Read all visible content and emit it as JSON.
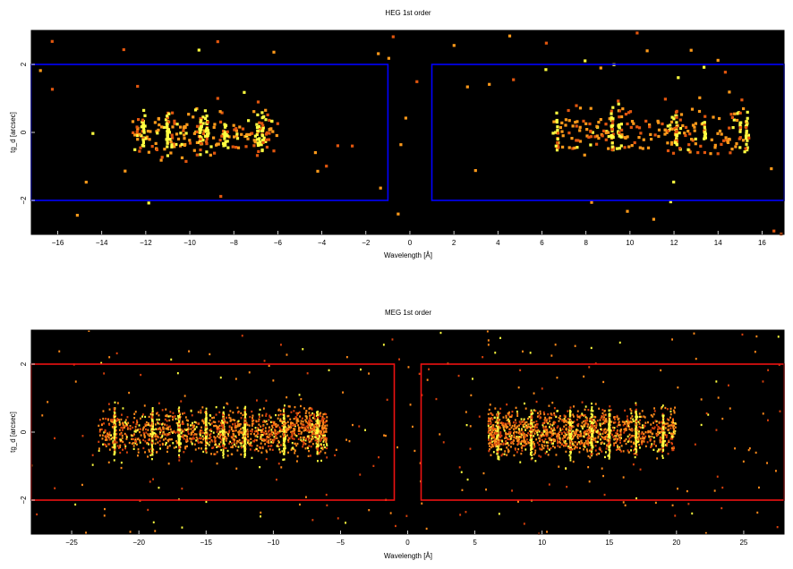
{
  "chart_data": [
    {
      "type": "heatmap",
      "title": "HEG 1st order",
      "xlabel": "Wavelength [Å]",
      "ylabel": "tg_d [arcsec]",
      "xlim": [
        -17.2,
        17.0
      ],
      "ylim": [
        -3.0,
        3.0
      ],
      "xticks": [
        -16,
        -14,
        -12,
        -10,
        -8,
        -6,
        -4,
        -2,
        0,
        2,
        4,
        6,
        8,
        10,
        12,
        14,
        16
      ],
      "xtick_labels": [
        "−16",
        "−14",
        "−12",
        "−10",
        "−8",
        "−6",
        "−4",
        "−2",
        "0",
        "2",
        "4",
        "6",
        "8",
        "10",
        "12",
        "14",
        "16"
      ],
      "yticks": [
        -2,
        0,
        2
      ],
      "ytick_labels": [
        "−2",
        "0",
        "2"
      ],
      "colors": {
        "background": "#000000",
        "region": "#0000ff",
        "hot": "#ffff40",
        "mid": "#ff9a1a",
        "cool": "#e2560e"
      },
      "source_regions": [
        {
          "x": [
            -17.2,
            -1.0
          ],
          "y": [
            -2.0,
            2.0
          ]
        },
        {
          "x": [
            1.0,
            17.0
          ],
          "y": [
            -2.0,
            2.0
          ]
        }
      ],
      "emission_lines": [
        -12.1,
        -11.0,
        -9.5,
        -9.2,
        -8.4,
        -6.9,
        -6.7,
        6.7,
        9.2,
        9.5,
        12.1,
        13.4,
        15.0,
        15.3
      ],
      "density": "sparse"
    },
    {
      "type": "heatmap",
      "title": "MEG 1st order",
      "xlabel": "Wavelength [Å]",
      "ylabel": "tg_d [arcsec]",
      "xlim": [
        -28.0,
        28.0
      ],
      "ylim": [
        -3.0,
        3.0
      ],
      "xticks": [
        -25,
        -20,
        -15,
        -10,
        -5,
        0,
        5,
        10,
        15,
        20,
        25
      ],
      "xtick_labels": [
        "−25",
        "−20",
        "−15",
        "−10",
        "−5",
        "0",
        "5",
        "10",
        "15",
        "20",
        "25"
      ],
      "yticks": [
        -2,
        0,
        2
      ],
      "ytick_labels": [
        "−2",
        "0",
        "2"
      ],
      "colors": {
        "background": "#000000",
        "region": "#ee1111",
        "hot": "#ffff40",
        "mid": "#ff8a1a",
        "cool": "#d8400c"
      },
      "source_regions": [
        {
          "x": [
            -28.0,
            -1.0
          ],
          "y": [
            -2.0,
            2.0
          ]
        },
        {
          "x": [
            1.0,
            28.0
          ],
          "y": [
            -2.0,
            2.0
          ]
        }
      ],
      "emission_lines": [
        -21.8,
        -19.0,
        -17.0,
        -15.0,
        -13.7,
        -12.1,
        -9.2,
        -6.7,
        6.7,
        9.2,
        12.1,
        13.7,
        15.0,
        17.0,
        19.0
      ],
      "density": "dense"
    }
  ]
}
